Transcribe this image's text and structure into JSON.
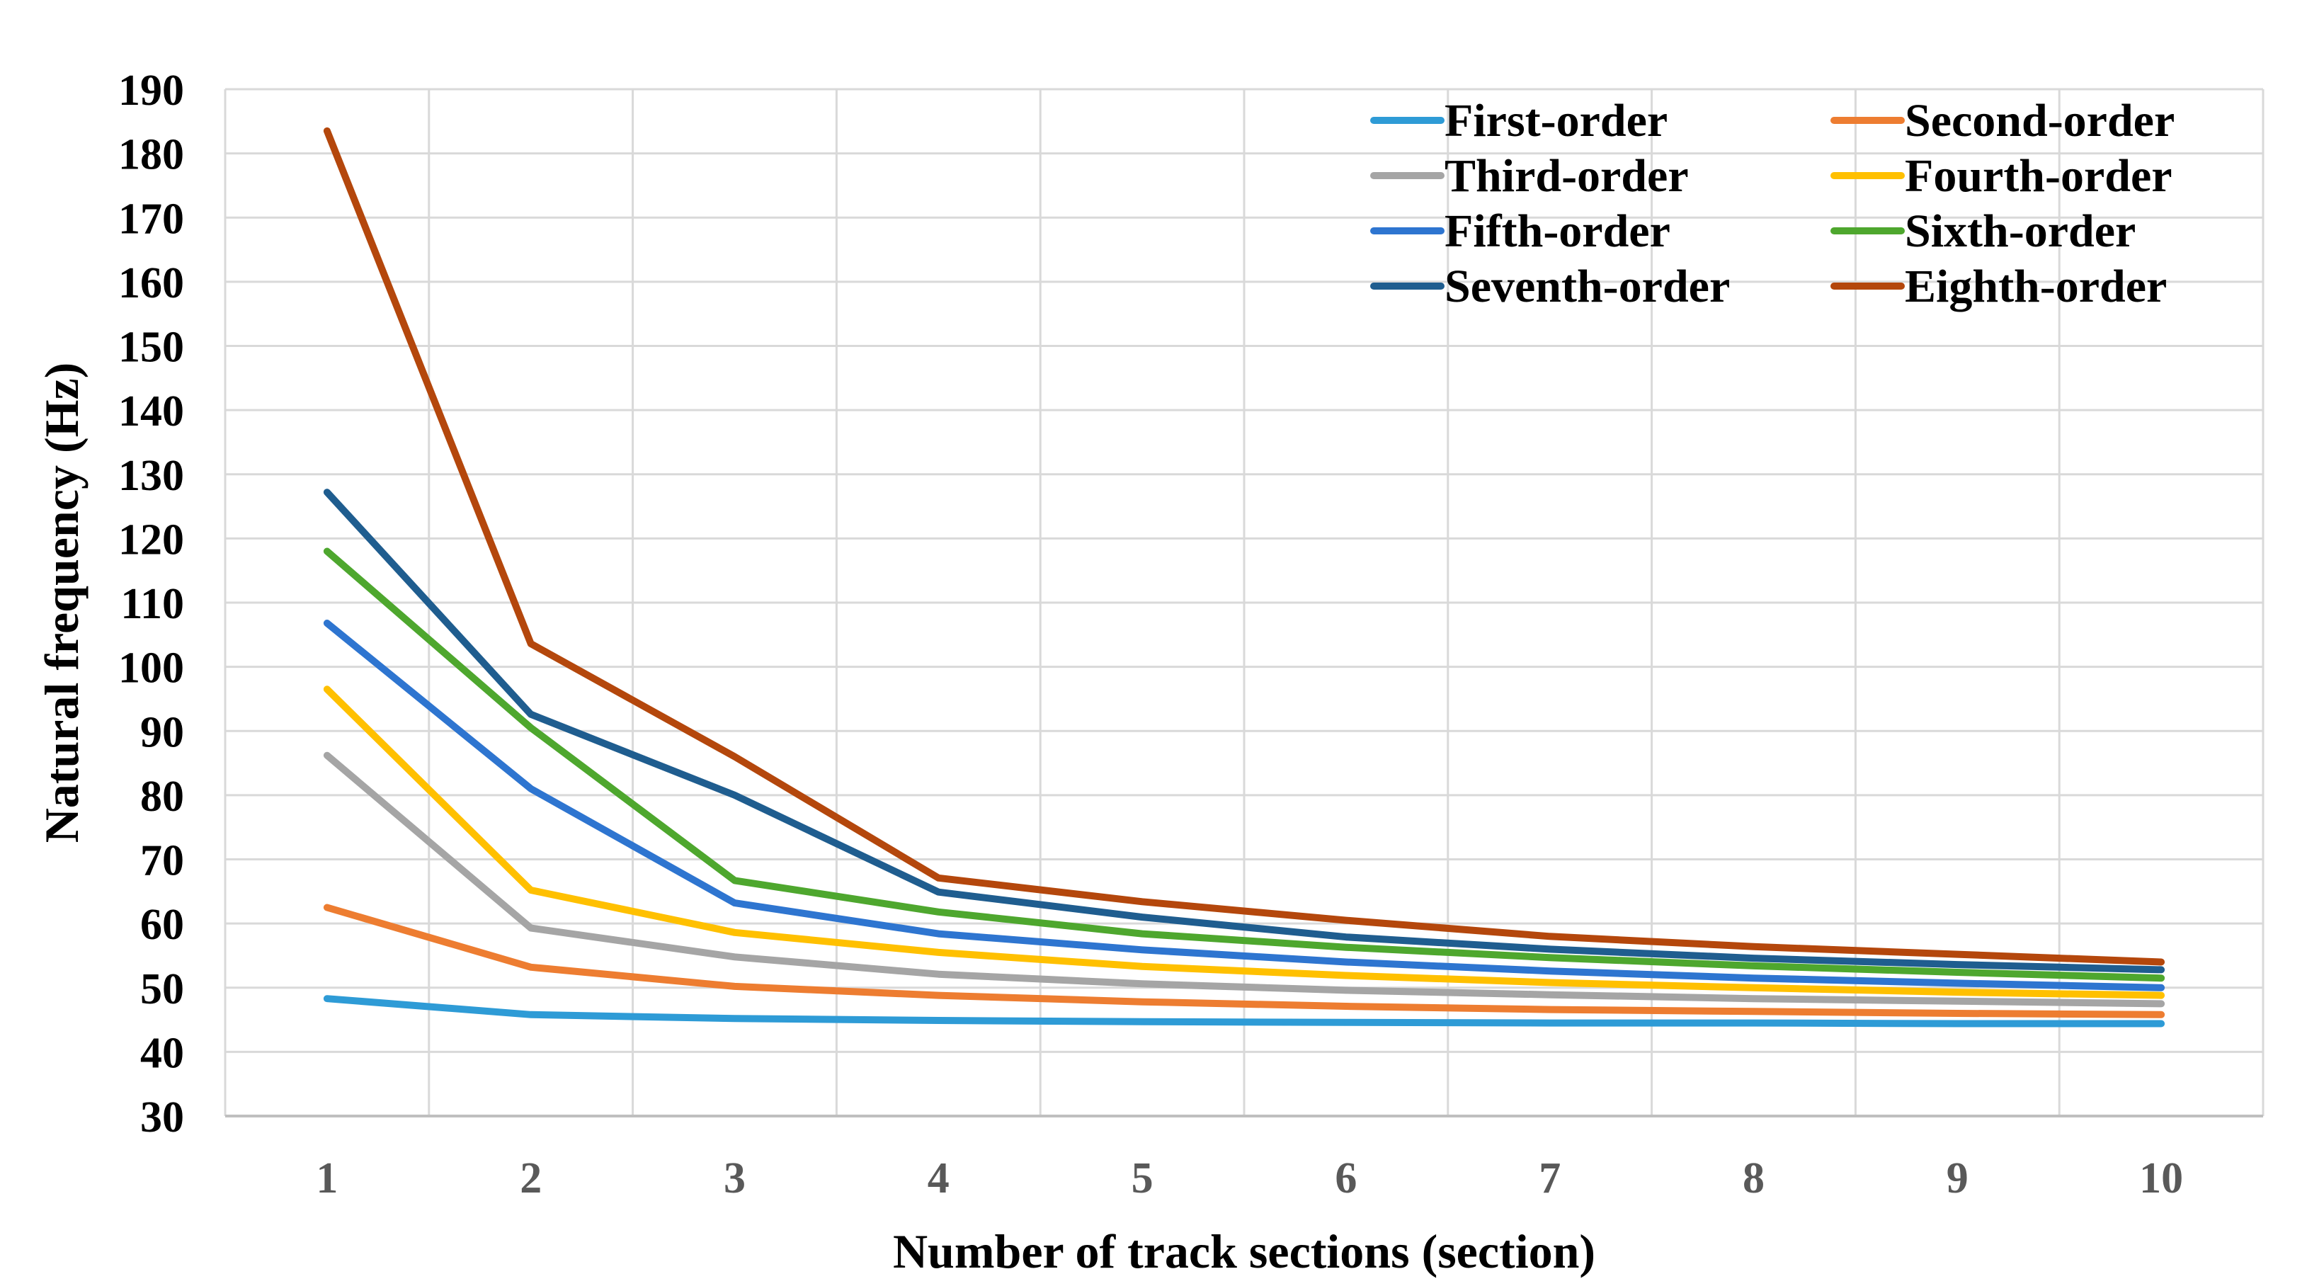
{
  "chart_data": {
    "type": "line",
    "title": "",
    "xlabel": "Number of track sections (section)",
    "ylabel": "Natural frequency (Hz)",
    "x": [
      1,
      2,
      3,
      4,
      5,
      6,
      7,
      8,
      9,
      10
    ],
    "xlim": [
      0.5,
      10.5
    ],
    "ylim": [
      30,
      190
    ],
    "yticks": [
      30,
      40,
      50,
      60,
      70,
      80,
      90,
      100,
      110,
      120,
      130,
      140,
      150,
      160,
      170,
      180,
      190
    ],
    "grid": true,
    "legend_position": "top-right",
    "series": [
      {
        "name": "First-order",
        "color": "#2E9BD6",
        "values": [
          48.3,
          45.8,
          45.2,
          44.9,
          44.7,
          44.6,
          44.5,
          44.5,
          44.4,
          44.4
        ]
      },
      {
        "name": "Second-order",
        "color": "#ED7D31",
        "values": [
          62.5,
          53.2,
          50.2,
          48.8,
          47.8,
          47.1,
          46.6,
          46.3,
          46.0,
          45.8
        ]
      },
      {
        "name": "Third-order",
        "color": "#A5A5A5",
        "values": [
          86.2,
          59.3,
          54.8,
          52.1,
          50.6,
          49.6,
          48.9,
          48.3,
          47.9,
          47.5
        ]
      },
      {
        "name": "Fourth-order",
        "color": "#FFC000",
        "values": [
          96.5,
          65.2,
          58.6,
          55.5,
          53.3,
          51.9,
          50.8,
          50.0,
          49.3,
          48.8
        ]
      },
      {
        "name": "Fifth-order",
        "color": "#2E75D0",
        "values": [
          106.8,
          81.0,
          63.2,
          58.4,
          55.9,
          54.0,
          52.6,
          51.5,
          50.7,
          50.0
        ]
      },
      {
        "name": "Sixth-order",
        "color": "#4EA72E",
        "values": [
          118.0,
          90.5,
          66.7,
          61.8,
          58.4,
          56.3,
          54.7,
          53.4,
          52.4,
          51.5
        ]
      },
      {
        "name": "Seventh-order",
        "color": "#1F5D8F",
        "values": [
          127.2,
          92.6,
          80.0,
          64.9,
          61.0,
          57.9,
          56.0,
          54.6,
          53.6,
          52.8
        ]
      },
      {
        "name": "Eighth-order",
        "color": "#B4470C",
        "values": [
          183.5,
          103.6,
          86.0,
          67.1,
          63.4,
          60.5,
          58.0,
          56.4,
          55.2,
          54.0
        ]
      }
    ]
  }
}
